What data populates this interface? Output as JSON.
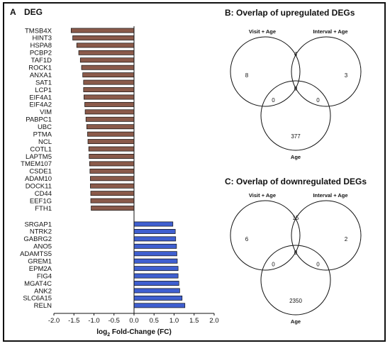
{
  "panels": {
    "a_letter": "A",
    "a_title": "DEG",
    "b_title": "B: Overlap of upregulated DEGs",
    "c_title": "C: Overlap of downregulated DEGs"
  },
  "chart_data": [
    {
      "type": "bar",
      "orientation": "horizontal",
      "title": "DEG",
      "xlabel_parts": [
        "log",
        "2",
        " Fold-Change  (FC)"
      ],
      "xlim": [
        -2.0,
        2.0
      ],
      "x_ticks": [
        "-2.0",
        "-1.5",
        "-1.0",
        "-0.5",
        "0.0",
        "0.5",
        "1.0",
        "1.5",
        "2.0"
      ],
      "colors": {
        "down": "#8a5a4a",
        "up": "#3f5fd0"
      },
      "groups": [
        {
          "direction": "negative",
          "bars": [
            {
              "gene": "TMSB4X",
              "value": -1.57
            },
            {
              "gene": "HINT3",
              "value": -1.53
            },
            {
              "gene": "HSPA8",
              "value": -1.43
            },
            {
              "gene": "PCBP2",
              "value": -1.38
            },
            {
              "gene": "TAF1D",
              "value": -1.34
            },
            {
              "gene": "ROCK1",
              "value": -1.31
            },
            {
              "gene": "ANXA1",
              "value": -1.28
            },
            {
              "gene": "SAT1",
              "value": -1.26
            },
            {
              "gene": "LCP1",
              "value": -1.26
            },
            {
              "gene": "EIF4A1",
              "value": -1.25
            },
            {
              "gene": "EIF4A2",
              "value": -1.23
            },
            {
              "gene": "VIM",
              "value": -1.22
            },
            {
              "gene": "PABPC1",
              "value": -1.2
            },
            {
              "gene": "UBC",
              "value": -1.18
            },
            {
              "gene": "PTMA",
              "value": -1.16
            },
            {
              "gene": "NCL",
              "value": -1.15
            },
            {
              "gene": "COTL1",
              "value": -1.13
            },
            {
              "gene": "LAPTM5",
              "value": -1.12
            },
            {
              "gene": "TMEM107",
              "value": -1.11
            },
            {
              "gene": "CSDE1",
              "value": -1.1
            },
            {
              "gene": "ADAM10",
              "value": -1.09
            },
            {
              "gene": "DOCK11",
              "value": -1.09
            },
            {
              "gene": "CD44",
              "value": -1.08
            },
            {
              "gene": "EEF1G",
              "value": -1.08
            },
            {
              "gene": "FTH1",
              "value": -1.07
            }
          ]
        },
        {
          "direction": "positive",
          "bars": [
            {
              "gene": "SRGAP1",
              "value": 0.97
            },
            {
              "gene": "NTRK2",
              "value": 1.03
            },
            {
              "gene": "GABRG2",
              "value": 1.04
            },
            {
              "gene": "ANO5",
              "value": 1.06
            },
            {
              "gene": "ADAMTS5",
              "value": 1.07
            },
            {
              "gene": "GREM1",
              "value": 1.08
            },
            {
              "gene": "EPM2A",
              "value": 1.1
            },
            {
              "gene": "FIG4",
              "value": 1.1
            },
            {
              "gene": "MGAT4C",
              "value": 1.12
            },
            {
              "gene": "ANK2",
              "value": 1.14
            },
            {
              "gene": "SLC6A15",
              "value": 1.2
            },
            {
              "gene": "RELN",
              "value": 1.27
            }
          ]
        }
      ]
    },
    {
      "type": "venn",
      "title": "B: Overlap of upregulated DEGs",
      "sets": [
        "Visit + Age",
        "Interval + Age",
        "Age"
      ],
      "regions": {
        "visit_only": 8,
        "interval_only": 3,
        "age_only": 377,
        "visit_interval": 4,
        "visit_age": 0,
        "interval_age": 0,
        "all": 0
      }
    },
    {
      "type": "venn",
      "title": "C: Overlap of downregulated DEGs",
      "sets": [
        "Visit + Age",
        "Interval + Age",
        "Age"
      ],
      "regions": {
        "visit_only": 6,
        "interval_only": 2,
        "age_only": 2350,
        "visit_interval": 15,
        "visit_age": 0,
        "interval_age": 0,
        "all": 0
      }
    }
  ]
}
